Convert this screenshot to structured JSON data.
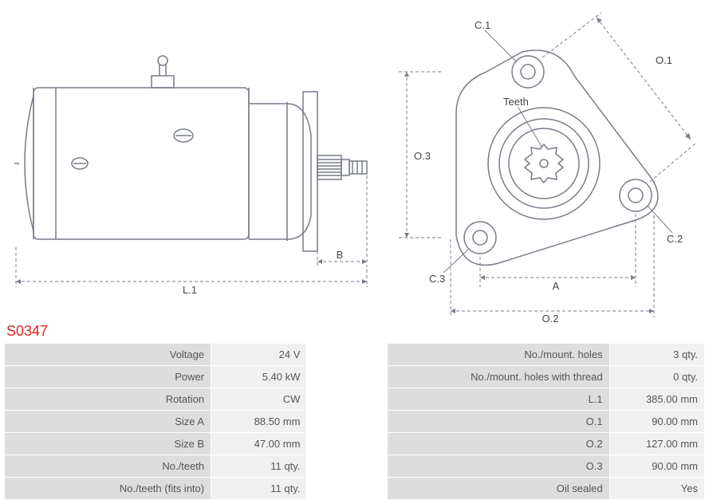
{
  "part_code": "S0347",
  "part_code_color": "#d22",
  "drawing": {
    "line_color": "#777c8a",
    "label_color": "#444444",
    "label_fontsize": 13,
    "dim_labels": {
      "L1": "L.1",
      "B": "B",
      "A": "A",
      "O1": "O.1",
      "O2": "O.2",
      "O3": "O.3",
      "C1": "C.1",
      "C2": "C.2",
      "C3": "C.3",
      "Teeth": "Teeth"
    }
  },
  "specs": {
    "rows": [
      {
        "l1": "Voltage",
        "v1": "24 V",
        "l2": "No./mount. holes",
        "v2": "3 qty."
      },
      {
        "l1": "Power",
        "v1": "5.40 kW",
        "l2": "No./mount. holes with thread",
        "v2": "0 qty."
      },
      {
        "l1": "Rotation",
        "v1": "CW",
        "l2": "L.1",
        "v2": "385.00 mm"
      },
      {
        "l1": "Size A",
        "v1": "88.50 mm",
        "l2": "O.1",
        "v2": "90.00 mm"
      },
      {
        "l1": "Size B",
        "v1": "47.00 mm",
        "l2": "O.2",
        "v2": "127.00 mm"
      },
      {
        "l1": "No./teeth",
        "v1": "11 qty.",
        "l2": "O.3",
        "v2": "90.00 mm"
      },
      {
        "l1": "No./teeth (fits into)",
        "v1": "11 qty.",
        "l2": "Oil sealed",
        "v2": "Yes"
      }
    ]
  }
}
